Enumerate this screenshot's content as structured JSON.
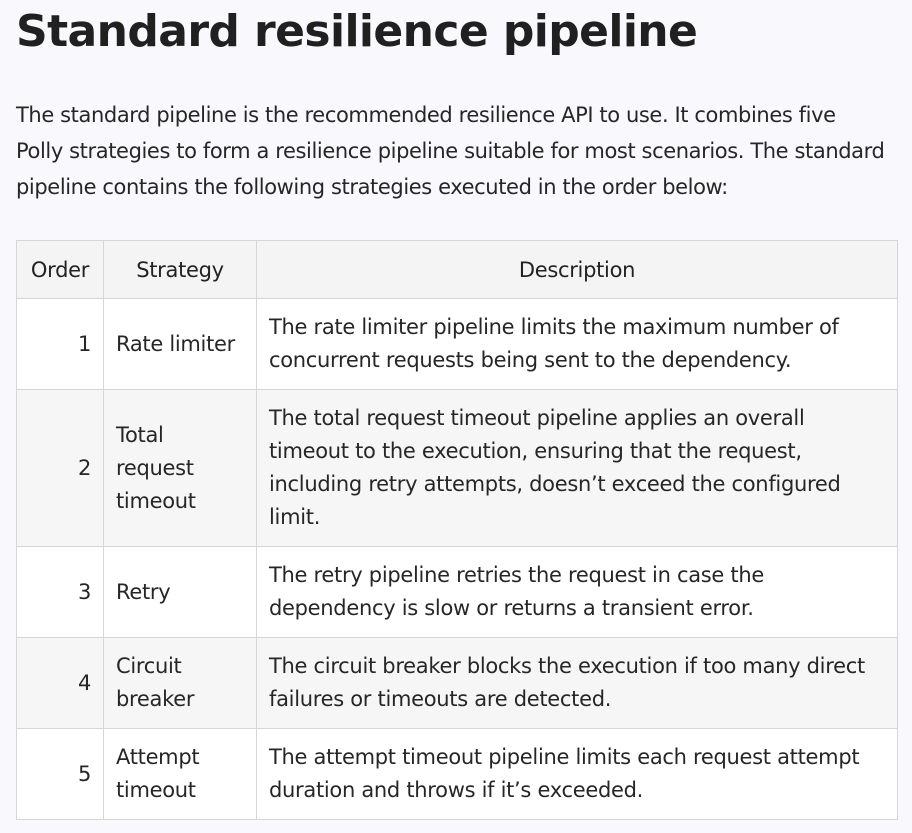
{
  "article": {
    "title": "Standard resilience pipeline",
    "intro": "The standard pipeline is the recommended resilience API to use. It combines five Polly strategies to form a resilience pipeline suitable for most scenarios. The standard pipeline contains the following strategies executed in the order below:"
  },
  "table": {
    "headers": {
      "order": "Order",
      "strategy": "Strategy",
      "description": "Description"
    },
    "rows": [
      {
        "order": "1",
        "strategy": "Rate limiter",
        "description": "The rate limiter pipeline limits the maximum number of concurrent requests being sent to the dependency."
      },
      {
        "order": "2",
        "strategy": "Total request timeout",
        "description": "The total request timeout pipeline applies an overall timeout to the execution, ensuring that the request, including retry attempts, doesn’t exceed the configured limit."
      },
      {
        "order": "3",
        "strategy": "Retry",
        "description": "The retry pipeline retries the request in case the dependency is slow or returns a transient error."
      },
      {
        "order": "4",
        "strategy": "Circuit breaker",
        "description": "The circuit breaker blocks the execution if too many direct failures or timeouts are detected."
      },
      {
        "order": "5",
        "strategy": "Attempt timeout",
        "description": "The attempt timeout pipeline limits each request attempt duration and throws if it’s exceeded."
      }
    ]
  }
}
